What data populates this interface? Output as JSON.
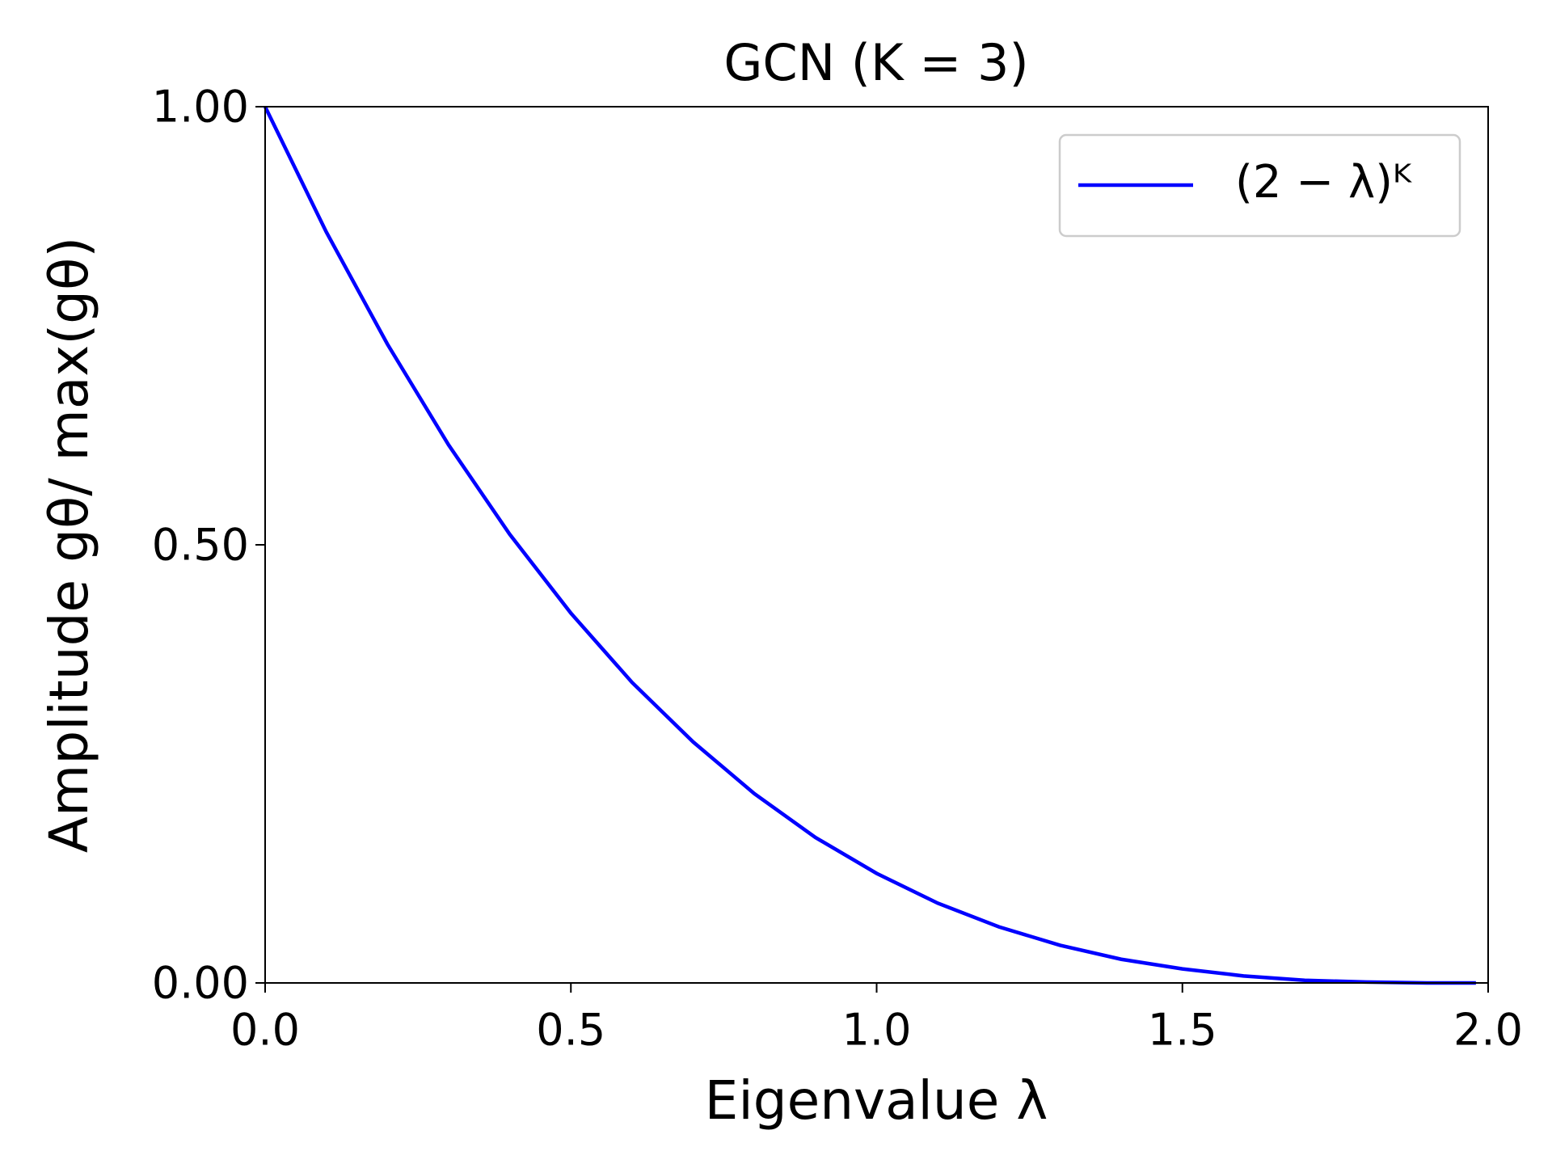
{
  "chart_data": {
    "type": "line",
    "title": "GCN (K = 3)",
    "x_label": "Eigenvalue λ",
    "y_label": "Amplitude gθ/ max(gθ)",
    "x": [
      0,
      0.1,
      0.2,
      0.3,
      0.4,
      0.5,
      0.6,
      0.7,
      0.8,
      0.9,
      1.0,
      1.1,
      1.2,
      1.3,
      1.4,
      1.5,
      1.6,
      1.7,
      1.8,
      1.9,
      1.98
    ],
    "series": [
      {
        "name": "(2 − λ)ᴷ",
        "color": "#0000ff",
        "values": [
          1,
          0.857,
          0.729,
          0.614,
          0.512,
          0.422,
          0.343,
          0.275,
          0.216,
          0.166,
          0.125,
          0.091,
          0.064,
          0.043,
          0.027,
          0.016,
          0.008,
          0.003,
          0.001,
          0,
          0
        ]
      }
    ],
    "xlim": [
      0,
      2
    ],
    "ylim": [
      0,
      1
    ],
    "xticks": [
      {
        "value": 0,
        "label": "0.0"
      },
      {
        "value": 0.5,
        "label": "0.5"
      },
      {
        "value": 1,
        "label": "1.0"
      },
      {
        "value": 1.5,
        "label": "1.5"
      },
      {
        "value": 2,
        "label": "2.0"
      }
    ],
    "yticks": [
      {
        "value": 0,
        "label": "0.00"
      },
      {
        "value": 0.5,
        "label": "0.50"
      },
      {
        "value": 1,
        "label": "1.00"
      }
    ],
    "legend": "upper right",
    "grid": false
  }
}
